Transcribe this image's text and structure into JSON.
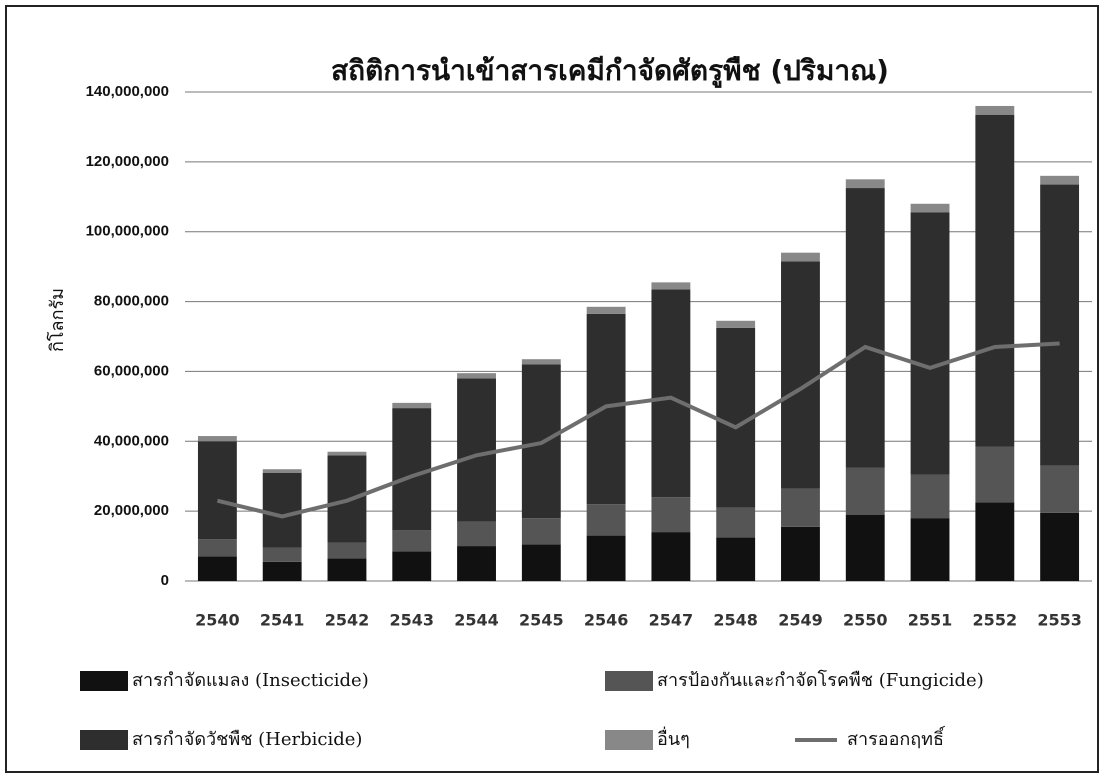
{
  "chart_data": {
    "type": "bar",
    "stacked": true,
    "title": "สถิติการนำเข้าสารเคมีกำจัดศัตรูพืช (ปริมาณ)",
    "y_label": "กิโลกรัม",
    "categories": [
      "2540",
      "2541",
      "2542",
      "2543",
      "2544",
      "2545",
      "2546",
      "2547",
      "2548",
      "2549",
      "2550",
      "2551",
      "2552",
      "2553"
    ],
    "series": [
      {
        "name": "สารกำจัดแมลง (Insecticide)",
        "color": "#111111",
        "values": [
          7000000,
          5500000,
          6500000,
          8500000,
          10000000,
          10500000,
          13000000,
          14000000,
          12500000,
          15500000,
          19000000,
          18000000,
          22500000,
          19500000
        ]
      },
      {
        "name": "สารป้องกันและกำจัดโรคพืช (Fungicide)",
        "color": "#555555",
        "values": [
          5000000,
          4000000,
          4500000,
          6000000,
          7000000,
          7500000,
          9000000,
          10000000,
          8500000,
          11000000,
          13500000,
          12500000,
          16000000,
          13500000
        ]
      },
      {
        "name": "สารกำจัดวัชพืช (Herbicide)",
        "color": "#2e2e2e",
        "values": [
          28000000,
          21500000,
          25000000,
          35000000,
          41000000,
          44000000,
          54500000,
          59500000,
          51500000,
          65000000,
          80000000,
          75000000,
          95000000,
          80500000
        ]
      },
      {
        "name": "อื่นๆ",
        "color": "#888888",
        "values": [
          1500000,
          1000000,
          1000000,
          1500000,
          1500000,
          1500000,
          2000000,
          2000000,
          2000000,
          2500000,
          2500000,
          2500000,
          2500000,
          2500000
        ]
      },
      {
        "name": "สารออกฤทธิ์",
        "type": "line",
        "color": "#6e6e6e",
        "values": [
          23000000,
          18500000,
          23000000,
          30000000,
          36000000,
          39500000,
          50000000,
          52500000,
          44000000,
          55000000,
          67000000,
          61000000,
          67000000,
          68000000
        ]
      }
    ],
    "ylim": [
      0,
      140000000
    ],
    "yticks": [
      0,
      {
        "value": 20000000,
        "label": "20,000,000"
      },
      {
        "value": 40000000,
        "label": "40,000,000"
      },
      {
        "value": 60000000,
        "label": "60,000,000"
      },
      {
        "value": 80000000,
        "label": "80,000,000"
      },
      {
        "value": 100000000,
        "label": "100,000,000"
      },
      {
        "value": 120000000,
        "label": "120,000,000"
      },
      {
        "value": 140000000,
        "label": "140,000,000"
      }
    ],
    "grid": true
  }
}
